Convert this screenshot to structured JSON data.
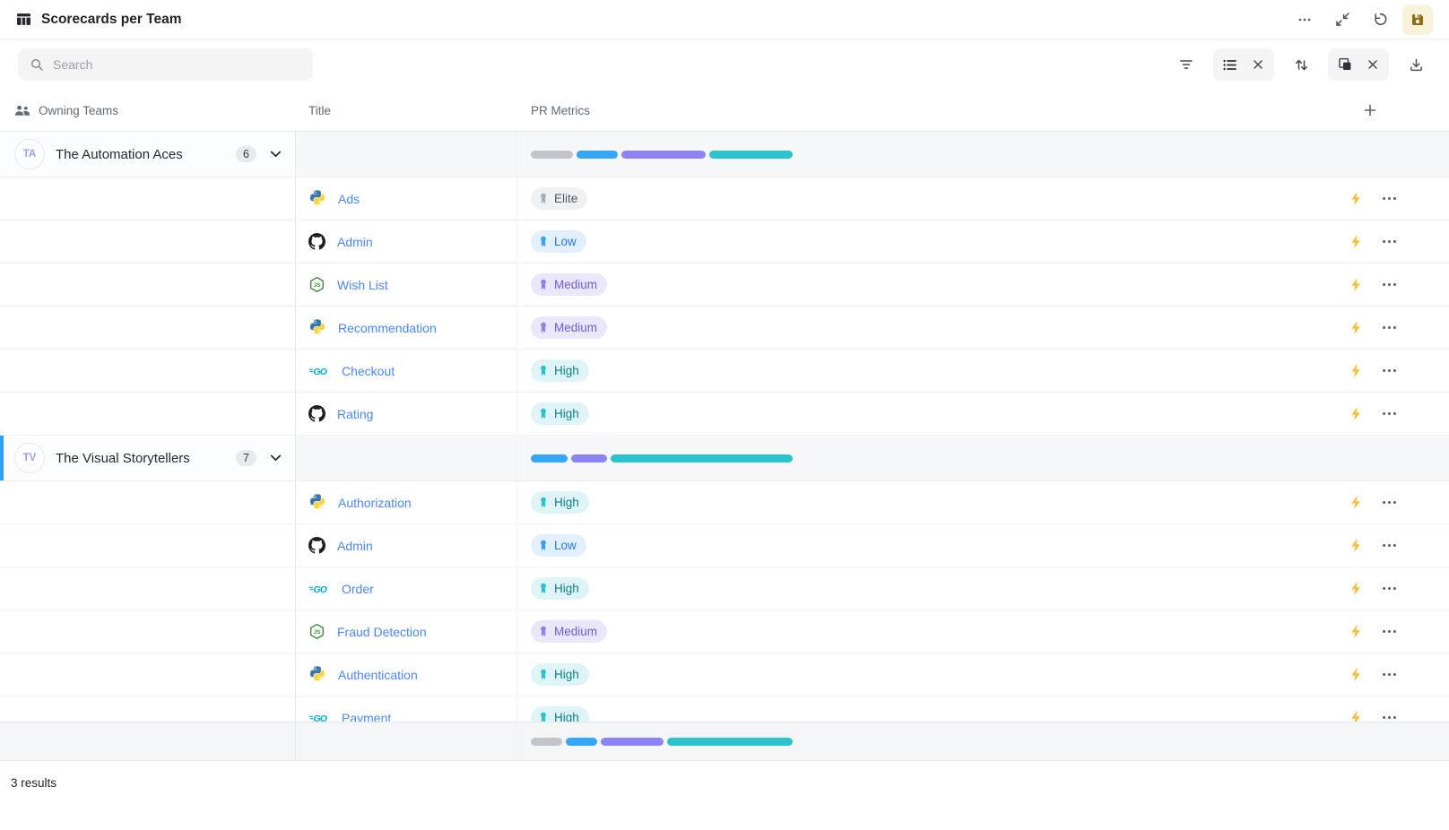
{
  "header": {
    "title": "Scorecards per Team",
    "actions": [
      "more-options",
      "collapse-view",
      "undo",
      "save"
    ]
  },
  "search": {
    "placeholder": "Search",
    "value": ""
  },
  "toolbar": {
    "icons": [
      "filter",
      "list-settings",
      "clear-list-settings",
      "sort",
      "group-by",
      "clear-group-by",
      "download"
    ]
  },
  "table": {
    "columns": [
      {
        "label": "Owning Teams",
        "icon": "team-icon"
      },
      {
        "label": "Title",
        "icon": null
      },
      {
        "label": "PR Metrics",
        "icon": null
      }
    ],
    "groups": [
      {
        "initials": "TA",
        "name": "The Automation Aces",
        "count": "6",
        "selected": false,
        "distribution": [
          {
            "level": "elite",
            "value": 1
          },
          {
            "level": "low",
            "value": 1
          },
          {
            "level": "medium",
            "value": 2
          },
          {
            "level": "high",
            "value": 2
          }
        ],
        "rows": [
          {
            "icon": "python",
            "title": "Ads",
            "level": "elite"
          },
          {
            "icon": "github",
            "title": "Admin",
            "level": "low"
          },
          {
            "icon": "nodejs",
            "title": "Wish List",
            "level": "medium"
          },
          {
            "icon": "python",
            "title": "Recommendation",
            "level": "medium"
          },
          {
            "icon": "go",
            "title": "Checkout",
            "level": "high"
          },
          {
            "icon": "github",
            "title": "Rating",
            "level": "high"
          }
        ]
      },
      {
        "initials": "TV",
        "name": "The Visual Storytellers",
        "count": "7",
        "selected": true,
        "distribution": [
          {
            "level": "low",
            "value": 1
          },
          {
            "level": "medium",
            "value": 1
          },
          {
            "level": "high",
            "value": 5
          }
        ],
        "rows": [
          {
            "icon": "python",
            "title": "Authorization",
            "level": "high"
          },
          {
            "icon": "github",
            "title": "Admin",
            "level": "low"
          },
          {
            "icon": "go",
            "title": "Order",
            "level": "high"
          },
          {
            "icon": "nodejs",
            "title": "Fraud Detection",
            "level": "medium"
          },
          {
            "icon": "python",
            "title": "Authentication",
            "level": "high"
          },
          {
            "icon": "go",
            "title": "Payment",
            "level": "high"
          }
        ]
      }
    ],
    "pinned_group_summary": {
      "distribution": [
        {
          "level": "elite",
          "value": 1
        },
        {
          "level": "low",
          "value": 1
        },
        {
          "level": "medium",
          "value": 2
        },
        {
          "level": "high",
          "value": 4
        }
      ]
    }
  },
  "levels": {
    "elite": {
      "label": "Elite",
      "badge_bg": "#f0f1f3",
      "badge_fg": "#50585f",
      "medal": "#a6adb4",
      "bar": "#c2c5ca"
    },
    "low": {
      "label": "Low",
      "badge_bg": "#e1effe",
      "badge_fg": "#2478dd",
      "medal": "#35a2f6",
      "bar": "#36a7f8"
    },
    "medium": {
      "label": "Medium",
      "badge_bg": "#eae7fc",
      "badge_fg": "#6c5ed0",
      "medal": "#8b81f3",
      "bar": "#8c84f5"
    },
    "high": {
      "label": "High",
      "badge_bg": "#def4f6",
      "badge_fg": "#0d7f89",
      "medal": "#29c3cc",
      "bar": "#2bc4cc"
    }
  },
  "colors": {
    "selected_indicator": "#2f9ef3",
    "link": "#4b87f2",
    "bolt": "#f6bd40",
    "save_icon": "#8b6f16",
    "save_bg": "#f9f2da"
  },
  "footer": {
    "results": "3 results"
  }
}
